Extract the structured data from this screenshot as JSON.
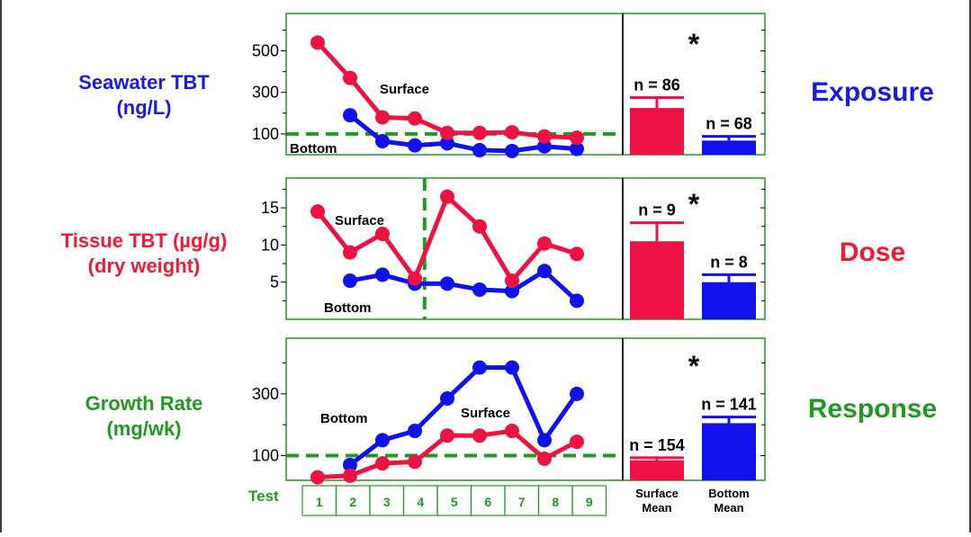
{
  "colors": {
    "surface": "#ee1144",
    "bottom": "#1111ee",
    "green": "#229922",
    "blue_label": "#1a1ae6",
    "red_label": "#ee1c33"
  },
  "panels": [
    {
      "row_label": [
        "Seawater TBT",
        "(ng/L)"
      ],
      "row_label_color": "#1a1ae6",
      "side_label": "Exposure",
      "side_label_color": "#1a1ae6",
      "star": "*"
    },
    {
      "row_label": [
        "Tissue TBT (µg/g)",
        "(dry weight)"
      ],
      "row_label_color": "#ee1c33",
      "side_label": "Dose",
      "side_label_color": "#ee1c33",
      "star": "*"
    },
    {
      "row_label": [
        "Growth Rate",
        "(mg/wk)"
      ],
      "row_label_color": "#229922",
      "side_label": "Response",
      "side_label_color": "#229922",
      "star": "*"
    }
  ],
  "chart_data": [
    {
      "type": "line",
      "ylim": [
        0,
        680
      ],
      "yticks": [
        100,
        300,
        500
      ],
      "minor_yticks": [
        200,
        400,
        600
      ],
      "reference_line": {
        "axis": "y",
        "value": 100,
        "style": "dashed"
      },
      "x": [
        1,
        2,
        3,
        4,
        5,
        6,
        7,
        8,
        9
      ],
      "series": [
        {
          "name": "Surface",
          "color": "#ee1144",
          "values": [
            540,
            370,
            180,
            175,
            105,
            105,
            108,
            88,
            82
          ]
        },
        {
          "name": "Bottom",
          "color": "#1111ee",
          "values": [
            null,
            190,
            65,
            45,
            55,
            22,
            18,
            40,
            28
          ]
        }
      ],
      "labels": {
        "surface": "Surface",
        "bottom": "Bottom"
      },
      "bars": {
        "categories": [
          "Surface Mean",
          "Bottom Mean"
        ],
        "values": [
          225,
          68
        ],
        "errors": [
          50,
          20
        ],
        "n_labels": [
          "n = 86",
          "n = 68"
        ],
        "colors": [
          "#ee1144",
          "#1111ee"
        ]
      }
    },
    {
      "type": "line",
      "ylim": [
        0,
        19
      ],
      "yticks": [
        5,
        10,
        15
      ],
      "minor_yticks": [
        2.5,
        7.5,
        12.5,
        17.5
      ],
      "reference_line": {
        "axis": "x",
        "value": 4.3,
        "style": "dashed"
      },
      "x": [
        1,
        2,
        3,
        4,
        5,
        6,
        7,
        8,
        9
      ],
      "series": [
        {
          "name": "Surface",
          "color": "#ee1144",
          "values": [
            14.5,
            9.0,
            11.5,
            5.5,
            16.5,
            12.5,
            5.2,
            10.2,
            8.8
          ]
        },
        {
          "name": "Bottom",
          "color": "#1111ee",
          "values": [
            null,
            5.2,
            6.0,
            4.8,
            4.8,
            4.0,
            3.8,
            6.5,
            2.5
          ]
        }
      ],
      "labels": {
        "surface": "Surface",
        "bottom": "Bottom"
      },
      "bars": {
        "categories": [
          "Surface Mean",
          "Bottom Mean"
        ],
        "values": [
          10.5,
          5.0
        ],
        "errors": [
          2.5,
          1.0
        ],
        "n_labels": [
          "n = 9",
          "n = 8"
        ],
        "colors": [
          "#ee1144",
          "#1111ee"
        ]
      }
    },
    {
      "type": "line",
      "ylim": [
        20,
        480
      ],
      "yticks": [
        100,
        300
      ],
      "minor_yticks": [
        200,
        400
      ],
      "reference_line": {
        "axis": "y",
        "value": 100,
        "style": "dashed"
      },
      "x": [
        1,
        2,
        3,
        4,
        5,
        6,
        7,
        8,
        9
      ],
      "series": [
        {
          "name": "Surface",
          "color": "#ee1144",
          "values": [
            30,
            35,
            75,
            80,
            165,
            165,
            180,
            90,
            145
          ]
        },
        {
          "name": "Bottom",
          "color": "#1111ee",
          "values": [
            null,
            70,
            150,
            180,
            285,
            385,
            385,
            150,
            300
          ]
        }
      ],
      "labels": {
        "surface": "Surface",
        "bottom": "Bottom"
      },
      "bars": {
        "categories": [
          "Surface Mean",
          "Bottom Mean"
        ],
        "values": [
          85,
          205
        ],
        "errors": [
          8,
          20
        ],
        "n_labels": [
          "n = 154",
          "n = 141"
        ],
        "colors": [
          "#ee1144",
          "#1111ee"
        ]
      }
    }
  ],
  "test_row": {
    "label": "Test",
    "cells": [
      "1",
      "2",
      "3",
      "4",
      "5",
      "6",
      "7",
      "8",
      "9"
    ]
  },
  "bar_categories": [
    [
      "Surface",
      "Mean"
    ],
    [
      "Bottom",
      "Mean"
    ]
  ]
}
